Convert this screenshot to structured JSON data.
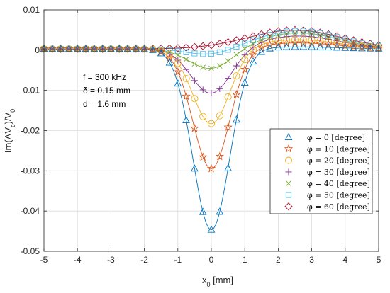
{
  "chart_data": {
    "type": "line",
    "xlabel": "x",
    "xlabel_sub": "0",
    "xlabel_unit": " [mm]",
    "ylabel": "Im(ΔV",
    "ylabel_sub1": "c",
    "ylabel_mid": ")/V",
    "ylabel_sub2": "0",
    "xlim": [
      -5,
      5
    ],
    "ylim": [
      -0.05,
      0.01
    ],
    "xticks": [
      -5,
      -4,
      -3,
      -2,
      -1,
      0,
      1,
      2,
      3,
      4,
      5
    ],
    "xtick_labels": [
      "-5",
      "-4",
      "-3",
      "-2",
      "-1",
      "0",
      "1",
      "2",
      "3",
      "4",
      "5"
    ],
    "yticks": [
      -0.05,
      -0.04,
      -0.03,
      -0.02,
      -0.01,
      0,
      0.01
    ],
    "ytick_labels": [
      "-0.05",
      "-0.04",
      "-0.03",
      "-0.02",
      "-0.01",
      "0",
      "0.01"
    ],
    "grid": true,
    "legend_position": "bottom-right",
    "annotations": [
      {
        "label": "f = 300 kHz"
      },
      {
        "label": "δ = 0.15 mm"
      },
      {
        "label": "d = 1.6 mm"
      }
    ],
    "marker_x": [
      -5.0,
      -4.75,
      -4.5,
      -4.25,
      -4.0,
      -3.75,
      -3.5,
      -3.25,
      -3.0,
      -2.75,
      -2.5,
      -2.25,
      -2.0,
      -1.75,
      -1.5,
      -1.25,
      -1.0,
      -0.75,
      -0.5,
      -0.25,
      0.0,
      0.25,
      0.5,
      0.75,
      1.0,
      1.25,
      1.5,
      1.75,
      2.0,
      2.25,
      2.5,
      2.75,
      3.0,
      3.25,
      3.5,
      3.75,
      4.0,
      4.25,
      4.5,
      4.75,
      5.0
    ],
    "series": [
      {
        "name": "φ = 0 [degree]",
        "color": "#0072BD",
        "marker": "triangle",
        "A": 0.045,
        "s": 0.55,
        "B": 0.0005,
        "c": 2.6,
        "w": 1.2,
        "C": 0.0003
      },
      {
        "name": "φ = 10 [degree]",
        "color": "#D95319",
        "marker": "star",
        "A": 0.0299,
        "s": 0.55,
        "B": 0.0015,
        "c": 2.6,
        "w": 1.2,
        "C": 0.0003
      },
      {
        "name": "φ = 20 [degree]",
        "color": "#EDB120",
        "marker": "circle",
        "A": 0.0188,
        "s": 0.55,
        "B": 0.0023,
        "c": 2.6,
        "w": 1.2,
        "C": 0.0003
      },
      {
        "name": "φ = 30 [degree]",
        "color": "#7E2F8E",
        "marker": "plus",
        "A": 0.0113,
        "s": 0.6,
        "B": 0.0032,
        "c": 2.6,
        "w": 1.2,
        "C": 0.0003
      },
      {
        "name": "φ = 40 [degree]",
        "color": "#77AC30",
        "marker": "x",
        "A": 0.0052,
        "s": 0.65,
        "B": 0.004,
        "c": 2.6,
        "w": 1.2,
        "C": 0.0003
      },
      {
        "name": "φ = 50 [degree]",
        "color": "#4DBEEE",
        "marker": "square",
        "A": 0.0017,
        "s": 0.7,
        "B": 0.0045,
        "c": 2.6,
        "w": 1.25,
        "C": 0.0003
      },
      {
        "name": "φ = 60 [degree]",
        "color": "#A2142F",
        "marker": "diamond",
        "A": 0.0,
        "s": 0.7,
        "B": 0.0047,
        "c": 2.5,
        "w": 1.4,
        "C": 0.0003
      }
    ]
  }
}
